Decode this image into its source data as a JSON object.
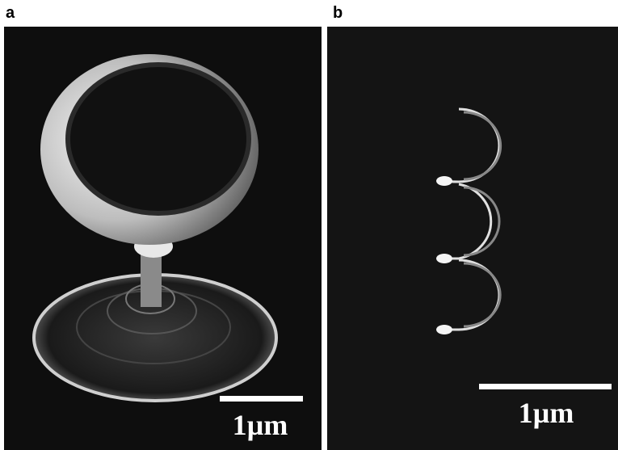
{
  "panels": [
    {
      "label": "a",
      "scale_bar": "1µm"
    },
    {
      "label": "b",
      "scale_bar": "1µm"
    }
  ]
}
